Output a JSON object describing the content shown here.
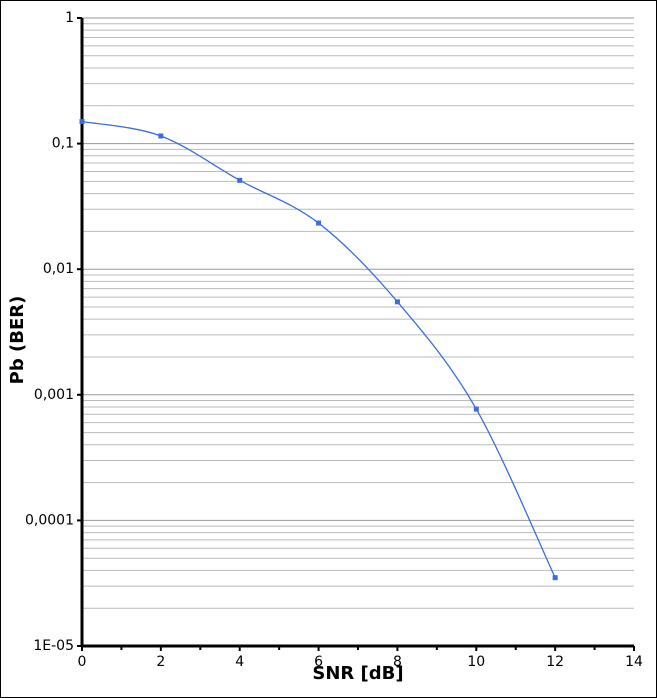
{
  "chart_data": {
    "type": "line",
    "x_label": "SNR [dB]",
    "y_label": "Pb (BER)",
    "x": [
      0,
      2,
      4,
      6,
      8,
      10,
      12
    ],
    "series": [
      {
        "color": "#3a6ee0",
        "values": [
          0.15,
          0.115,
          0.051,
          0.0233,
          0.0055,
          0.00077,
          3.5e-05
        ]
      }
    ],
    "xlim": [
      0,
      14
    ],
    "xticks": [
      0,
      2,
      4,
      6,
      8,
      10,
      12,
      14
    ],
    "ylim": [
      1e-05,
      1
    ],
    "log_y": true,
    "yticks": [
      {
        "value": 1e-05,
        "label": "1E-05"
      },
      {
        "value": 0.0001,
        "label": "0,0001"
      },
      {
        "value": 0.001,
        "label": "0,001"
      },
      {
        "value": 0.01,
        "label": "0,01"
      },
      {
        "value": 0.1,
        "label": "0,1"
      },
      1
    ],
    "grid": true
  }
}
